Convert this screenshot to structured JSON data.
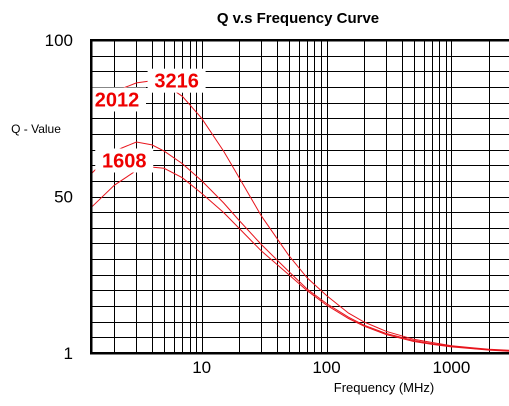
{
  "chart_data": {
    "type": "line",
    "title": "Q v.s Frequency Curve",
    "xlabel": "Frequency (MHz)",
    "ylabel": "Q - Value",
    "x_scale": "log",
    "x_range": [
      1.3,
      3000
    ],
    "x_ticks": [
      10,
      100,
      1000
    ],
    "x_tick_labels": [
      "10",
      "100",
      "1000"
    ],
    "y_ticks": [
      1,
      50,
      100
    ],
    "y_tick_labels": [
      "1",
      "50",
      "100"
    ],
    "y_range": [
      1,
      100
    ],
    "grid": true,
    "series": [
      {
        "name": "3216",
        "points": [
          [
            1.3,
            78
          ],
          [
            2,
            83.5
          ],
          [
            3,
            86.3
          ],
          [
            4,
            87
          ],
          [
            5,
            86
          ],
          [
            7,
            82
          ],
          [
            10,
            75
          ],
          [
            15,
            64.5
          ],
          [
            20,
            56
          ],
          [
            30,
            44
          ],
          [
            50,
            31.5
          ],
          [
            70,
            24.5
          ],
          [
            100,
            19
          ],
          [
            150,
            13.5
          ],
          [
            200,
            10.7
          ],
          [
            300,
            7.8
          ],
          [
            500,
            5.3
          ],
          [
            700,
            4.3
          ],
          [
            1000,
            3.3
          ],
          [
            1500,
            2.6
          ],
          [
            2000,
            2.2
          ],
          [
            3000,
            1.8
          ]
        ]
      },
      {
        "name": "2012",
        "points": [
          [
            1.3,
            57.2
          ],
          [
            2,
            64.5
          ],
          [
            3,
            67.4
          ],
          [
            4,
            66.5
          ],
          [
            5,
            64.5
          ],
          [
            7,
            60.5
          ],
          [
            10,
            55
          ],
          [
            15,
            48
          ],
          [
            20,
            42.5
          ],
          [
            30,
            35
          ],
          [
            50,
            26.5
          ],
          [
            70,
            21
          ],
          [
            100,
            16.5
          ],
          [
            150,
            12.2
          ],
          [
            200,
            9.7
          ],
          [
            300,
            7.1
          ],
          [
            500,
            4.9
          ],
          [
            700,
            3.9
          ],
          [
            1000,
            3.1
          ],
          [
            1500,
            2.4
          ],
          [
            2000,
            2
          ],
          [
            3000,
            1.6
          ]
        ]
      },
      {
        "name": "1608",
        "points": [
          [
            1.3,
            46.5
          ],
          [
            2,
            53.6
          ],
          [
            3,
            58.3
          ],
          [
            4,
            59.4
          ],
          [
            5,
            59
          ],
          [
            7,
            56
          ],
          [
            10,
            51
          ],
          [
            15,
            45
          ],
          [
            20,
            40
          ],
          [
            30,
            33
          ],
          [
            50,
            25.5
          ],
          [
            70,
            20.5
          ],
          [
            100,
            16
          ],
          [
            150,
            11.8
          ],
          [
            200,
            9.4
          ],
          [
            300,
            6.8
          ],
          [
            500,
            4.6
          ],
          [
            700,
            3.7
          ],
          [
            1000,
            2.9
          ],
          [
            1500,
            2.3
          ],
          [
            2000,
            1.9
          ],
          [
            3000,
            1.5
          ]
        ]
      }
    ]
  }
}
